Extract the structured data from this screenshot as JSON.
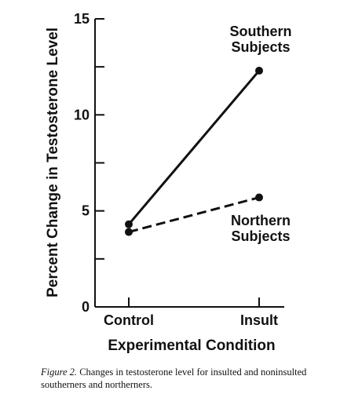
{
  "chart_data": {
    "type": "line",
    "categories": [
      "Control",
      "Insult"
    ],
    "series": [
      {
        "name": "Southern Subjects",
        "name_lines": [
          "Southern",
          "Subjects"
        ],
        "values": [
          4.3,
          12.3
        ],
        "line_style": "solid",
        "color": "#111111"
      },
      {
        "name": "Northern Subjects",
        "name_lines": [
          "Northern",
          "Subjects"
        ],
        "values": [
          3.9,
          5.7
        ],
        "line_style": "dashed",
        "color": "#111111"
      }
    ],
    "xlabel": "Experimental Condition",
    "ylabel": "Percent Change in Testosterone Level",
    "ylim": [
      0,
      15
    ],
    "yticks": [
      0,
      5,
      10,
      15
    ],
    "y_minor_step": 2.5,
    "grid": false,
    "legend": "direct labels next to lines"
  },
  "caption": {
    "label": "Figure 2.",
    "text": "Changes in testosterone level for insulted and noninsulted southerners and northerners."
  }
}
